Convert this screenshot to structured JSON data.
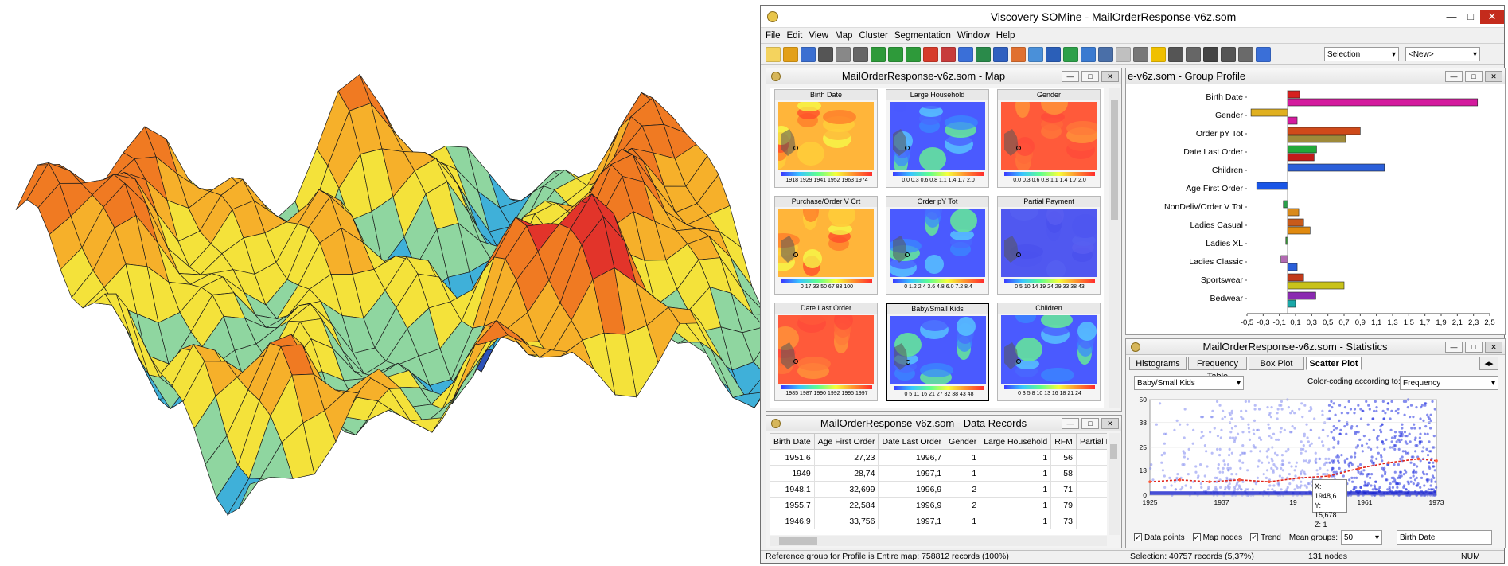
{
  "window": {
    "title": "Viscovery SOMine - MailOrderResponse-v6z.som"
  },
  "menu": [
    "File",
    "Edit",
    "View",
    "Map",
    "Cluster",
    "Segmentation",
    "Window",
    "Help"
  ],
  "toolbar": {
    "selection_value": "Selection",
    "new_value": "<New>"
  },
  "map_window": {
    "title": "MailOrderResponse-v6z.som - Map",
    "maps": [
      {
        "label": "Birth Date",
        "ticks": "1918 1929 1941 1952 1963 1974",
        "palette": "warm"
      },
      {
        "label": "Large Household",
        "ticks": "0.0 0.3 0.6 0.8 1.1 1.4 1.7 2.0",
        "palette": "cool"
      },
      {
        "label": "Gender",
        "ticks": "0.0 0.3 0.6 0.8 1.1 1.4 1.7 2.0",
        "palette": "hot"
      },
      {
        "label": "Purchase/Order V Crt",
        "ticks": "0 17 33 50 67 83 100",
        "palette": "warm"
      },
      {
        "label": "Order pY Tot",
        "ticks": "0 1.2 2.4 3.6 4.8 6.0 7.2 8.4",
        "palette": "cool"
      },
      {
        "label": "Partial Payment",
        "ticks": "0 5 10 14 19 24 29 33 38 43",
        "palette": "blue"
      },
      {
        "label": "Date Last Order",
        "ticks": "1985 1987 1990 1992 1995 1997",
        "palette": "hot"
      },
      {
        "label": "Baby/Small Kids",
        "ticks": "0 5 11 16 21 27 32 38 43 48",
        "palette": "cool",
        "selected": true
      },
      {
        "label": "Children",
        "ticks": "0 3 5 8 10 13 16 18 21 24",
        "palette": "cool"
      }
    ]
  },
  "profile_window": {
    "title": "e-v6z.som - Group Profile",
    "axis_ticks": [
      "-0,5",
      "-0,3",
      "-0,1",
      "0,1",
      "0,3",
      "0,5",
      "0,7",
      "0,9",
      "1,1",
      "1,3",
      "1,5",
      "1,7",
      "1,9",
      "2,1",
      "2,3",
      "2,5"
    ],
    "bars": [
      {
        "label": "Birth Date",
        "values": [
          0.15,
          2.35
        ],
        "colors": [
          "#d62020",
          "#d41b9e"
        ]
      },
      {
        "label": "Gender",
        "values": [
          -0.45,
          0.12
        ],
        "colors": [
          "#e0b020",
          "#d41b9e"
        ]
      },
      {
        "label": "Order pY Tot",
        "values": [
          0.9,
          0.72
        ],
        "colors": [
          "#cf4a1a",
          "#9e8a3a"
        ]
      },
      {
        "label": "Date Last Order",
        "values": [
          0.36,
          0.33
        ],
        "colors": [
          "#22a83a",
          "#c21a1a"
        ]
      },
      {
        "label": "Children",
        "values": [
          1.2
        ],
        "colors": [
          "#2b5fd9"
        ]
      },
      {
        "label": "Age First Order",
        "values": [
          -0.38
        ],
        "colors": [
          "#1a55e6"
        ]
      },
      {
        "label": "NonDeliv/Order V Tot",
        "values": [
          -0.05,
          0.14
        ],
        "colors": [
          "#2aa04a",
          "#d98a1a"
        ]
      },
      {
        "label": "Ladies Casual",
        "values": [
          0.2,
          0.28
        ],
        "colors": [
          "#c85a1a",
          "#e08a10"
        ]
      },
      {
        "label": "Ladies XL",
        "values": [
          -0.02
        ],
        "colors": [
          "#3a9a3a"
        ]
      },
      {
        "label": "Ladies Classic",
        "values": [
          -0.08,
          0.12
        ],
        "colors": [
          "#b36ab3",
          "#2b5fd9"
        ]
      },
      {
        "label": "Sportswear",
        "values": [
          0.2,
          0.7
        ],
        "colors": [
          "#c23a1a",
          "#c8c21a"
        ]
      },
      {
        "label": "Bedwear",
        "values": [
          0.35,
          0.1
        ],
        "colors": [
          "#8a2ab0",
          "#1aa8a8"
        ]
      }
    ]
  },
  "records_window": {
    "title": "MailOrderResponse-v6z.som - Data Records",
    "columns": [
      "Birth Date",
      "Age First Order",
      "Date Last Order",
      "Gender",
      "Large Household",
      "RFM",
      "Partial Pay"
    ],
    "rows": [
      [
        "1951,6",
        "27,23",
        "1996,7",
        "1",
        "1",
        "56",
        ""
      ],
      [
        "1949",
        "28,74",
        "1997,1",
        "1",
        "1",
        "58",
        ""
      ],
      [
        "1948,1",
        "32,699",
        "1996,9",
        "2",
        "1",
        "71",
        ""
      ],
      [
        "1955,7",
        "22,584",
        "1996,9",
        "2",
        "1",
        "79",
        ""
      ],
      [
        "1946,9",
        "33,756",
        "1997,1",
        "1",
        "1",
        "73",
        ""
      ]
    ]
  },
  "stats_window": {
    "title": "MailOrderResponse-v6z.som - Statistics",
    "tabs": [
      "Histograms",
      "Frequency Table",
      "Box Plot",
      "Scatter Plot"
    ],
    "variable": "Baby/Small Kids",
    "color_label": "Color-coding according to:",
    "color_value": "Frequency",
    "tooltip": [
      "X: 1948,6",
      "Y: 15,678",
      "Z: 1"
    ],
    "checks": [
      "Data points",
      "Map nodes",
      "Trend"
    ],
    "mean_label": "Mean groups:",
    "mean_value": "50",
    "x_var": "Birth Date"
  },
  "chart_data": {
    "type": "scatter",
    "xlabel": "Birth Date",
    "ylabel": "Baby/Small Kids",
    "xlim": [
      1925,
      1973
    ],
    "ylim": [
      0,
      50
    ],
    "x_ticks": [
      "1925",
      "1937",
      "19",
      "1961",
      "1973"
    ],
    "y_ticks": [
      "50",
      "38",
      "25",
      "13",
      "0"
    ],
    "series": [
      {
        "name": "Trend",
        "x": [
          1925,
          1930,
          1935,
          1940,
          1945,
          1950,
          1955,
          1960,
          1965,
          1970,
          1973
        ],
        "y": [
          7,
          8,
          7,
          8,
          7,
          9,
          10,
          14,
          17,
          19,
          18
        ]
      }
    ]
  },
  "status": {
    "left": "Reference group for Profile is Entire map: 758812 records (100%)",
    "mid": "Selection: 40757 records (5,37%)",
    "nodes": "131 nodes",
    "num": "NUM"
  }
}
